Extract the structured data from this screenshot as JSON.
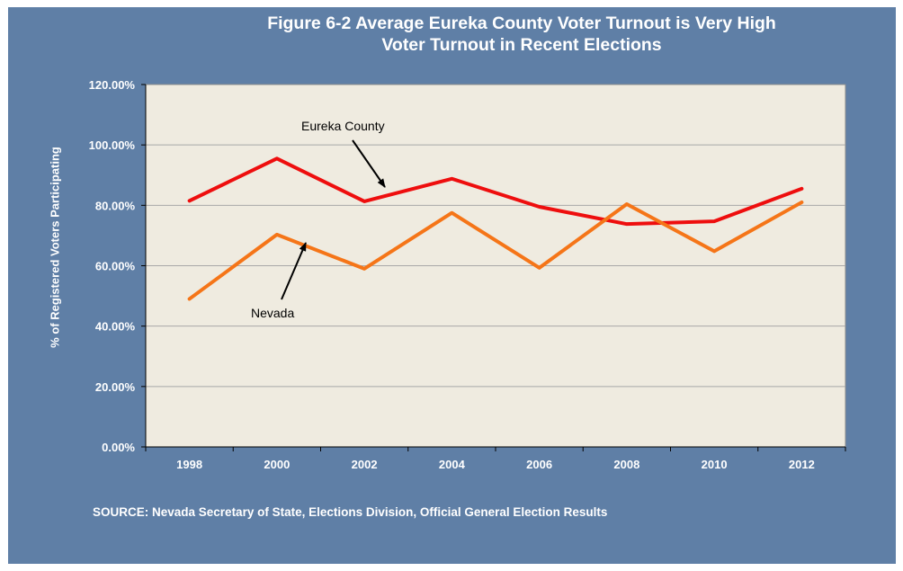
{
  "title_line1": "Figure 6-2 Average Eureka County Voter Turnout is Very High",
  "title_line2": "Voter Turnout in Recent Elections",
  "source": "SOURCE: Nevada Secretary of State, Elections Division, Official General Election Results",
  "colors": {
    "background": "#5f7fa6",
    "plot_area": "#efebe0",
    "eureka": "#ee0e0e",
    "nevada": "#f57518"
  },
  "chart_data": {
    "type": "line",
    "ylabel": "% of Registered Voters Participating",
    "xlabel": "",
    "categories": [
      "1998",
      "2000",
      "2002",
      "2004",
      "2006",
      "2008",
      "2010",
      "2012"
    ],
    "ylim": [
      0,
      120
    ],
    "yticks": [
      "0.00%",
      "20.00%",
      "40.00%",
      "60.00%",
      "80.00%",
      "100.00%",
      "120.00%"
    ],
    "grid": true,
    "series": [
      {
        "name": "Eureka County",
        "values": [
          81.5,
          95.5,
          81.3,
          88.8,
          79.5,
          73.8,
          74.7,
          85.5
        ]
      },
      {
        "name": "Nevada",
        "values": [
          49.0,
          70.3,
          59.0,
          77.5,
          59.3,
          80.4,
          64.8,
          81.0
        ]
      }
    ],
    "annotations": [
      {
        "text": "Eureka County",
        "series": "Eureka County"
      },
      {
        "text": "Nevada",
        "series": "Nevada"
      }
    ]
  }
}
